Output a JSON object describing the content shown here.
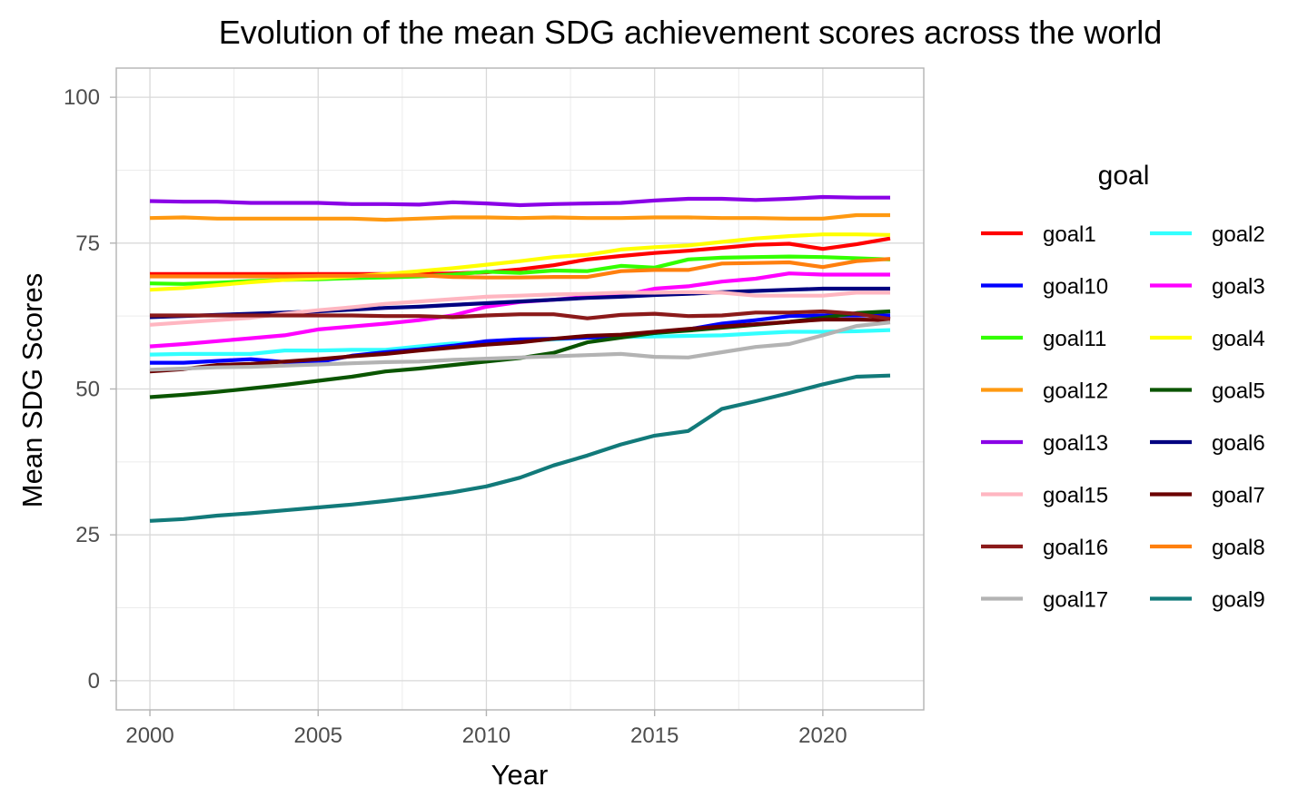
{
  "chart_data": {
    "type": "line",
    "title": "Evolution of the mean SDG achievement scores across the world",
    "xlabel": "Year",
    "ylabel": "Mean SDG Scores",
    "xlim": [
      1999,
      2023
    ],
    "ylim": [
      -5,
      105
    ],
    "x_ticks": [
      2000,
      2005,
      2010,
      2015,
      2020
    ],
    "y_ticks": [
      0,
      25,
      50,
      75,
      100
    ],
    "grid": true,
    "legend": {
      "title": "goal",
      "position": "right",
      "columns": 2
    },
    "x": [
      2000,
      2001,
      2002,
      2003,
      2004,
      2005,
      2006,
      2007,
      2008,
      2009,
      2010,
      2011,
      2012,
      2013,
      2014,
      2015,
      2016,
      2017,
      2018,
      2019,
      2020,
      2021,
      2022
    ],
    "series": [
      {
        "name": "goal1",
        "color": "#ff0000",
        "values": [
          69.7,
          69.7,
          69.7,
          69.7,
          69.7,
          69.7,
          69.7,
          69.7,
          69.7,
          69.8,
          70.0,
          70.5,
          71.2,
          72.2,
          72.8,
          73.3,
          73.7,
          74.2,
          74.7,
          74.9,
          74.0,
          74.8,
          75.8
        ]
      },
      {
        "name": "goal2",
        "color": "#33ffff",
        "values": [
          55.9,
          56.0,
          56.0,
          56.0,
          56.6,
          56.6,
          56.7,
          56.7,
          57.3,
          57.8,
          57.8,
          58.2,
          58.5,
          58.8,
          58.9,
          59.0,
          59.1,
          59.2,
          59.5,
          59.8,
          59.8,
          59.9,
          60.1
        ]
      },
      {
        "name": "goal10",
        "color": "#0000ff",
        "values": [
          54.5,
          54.5,
          54.8,
          55.1,
          54.6,
          54.6,
          55.7,
          56.3,
          56.8,
          57.4,
          58.2,
          58.5,
          58.6,
          58.8,
          59.0,
          59.6,
          60.2,
          61.2,
          61.8,
          62.5,
          62.6,
          62.6,
          62.6
        ]
      },
      {
        "name": "goal3",
        "color": "#ff00ff",
        "values": [
          57.3,
          57.7,
          58.2,
          58.7,
          59.2,
          60.2,
          60.7,
          61.2,
          61.8,
          62.6,
          64.1,
          64.9,
          65.3,
          65.8,
          66.0,
          67.2,
          67.6,
          68.4,
          68.9,
          69.8,
          69.6,
          69.6,
          69.6
        ]
      },
      {
        "name": "goal11",
        "color": "#33ff00",
        "values": [
          68.1,
          68.0,
          68.2,
          68.5,
          68.7,
          68.8,
          69.0,
          69.1,
          69.3,
          69.6,
          70.1,
          69.9,
          70.3,
          70.2,
          71.1,
          70.8,
          72.2,
          72.5,
          72.6,
          72.7,
          72.6,
          72.4,
          72.2
        ]
      },
      {
        "name": "goal4",
        "color": "#ffff00",
        "values": [
          67.0,
          67.3,
          67.8,
          68.3,
          68.7,
          69.0,
          69.3,
          69.7,
          70.2,
          70.7,
          71.3,
          71.9,
          72.6,
          73.0,
          73.9,
          74.3,
          74.6,
          75.2,
          75.8,
          76.2,
          76.5,
          76.5,
          76.4
        ]
      },
      {
        "name": "goal12",
        "color": "#ff9911",
        "values": [
          79.3,
          79.4,
          79.2,
          79.2,
          79.2,
          79.2,
          79.2,
          79.0,
          79.2,
          79.4,
          79.4,
          79.3,
          79.4,
          79.3,
          79.3,
          79.4,
          79.4,
          79.3,
          79.3,
          79.2,
          79.2,
          79.8,
          79.8
        ]
      },
      {
        "name": "goal5",
        "color": "#0a5500",
        "values": [
          48.6,
          49.0,
          49.5,
          50.1,
          50.7,
          51.4,
          52.1,
          53.0,
          53.5,
          54.1,
          54.7,
          55.3,
          56.2,
          58.0,
          58.8,
          59.6,
          60.0,
          60.5,
          61.0,
          61.5,
          62.2,
          63.0,
          63.3
        ]
      },
      {
        "name": "goal13",
        "color": "#8a00e6",
        "values": [
          82.2,
          82.1,
          82.1,
          81.9,
          81.9,
          81.9,
          81.7,
          81.7,
          81.6,
          82.0,
          81.8,
          81.5,
          81.7,
          81.8,
          81.9,
          82.3,
          82.6,
          82.6,
          82.4,
          82.6,
          82.9,
          82.8,
          82.8
        ]
      },
      {
        "name": "goal6",
        "color": "#000080",
        "values": [
          62.3,
          62.5,
          62.7,
          62.9,
          63.1,
          63.3,
          63.6,
          63.9,
          64.1,
          64.4,
          64.7,
          65.0,
          65.3,
          65.6,
          65.8,
          66.1,
          66.3,
          66.6,
          66.8,
          67.0,
          67.2,
          67.2,
          67.2
        ]
      },
      {
        "name": "goal15",
        "color": "#ffb6c1",
        "values": [
          61.0,
          61.4,
          61.8,
          62.2,
          62.9,
          63.5,
          64.0,
          64.6,
          65.0,
          65.4,
          65.8,
          66.0,
          66.2,
          66.3,
          66.5,
          66.5,
          66.6,
          66.5,
          66.0,
          66.0,
          66.0,
          66.5,
          66.5
        ]
      },
      {
        "name": "goal7",
        "color": "#6b0000",
        "values": [
          53.0,
          53.4,
          54.1,
          54.3,
          54.7,
          55.1,
          55.6,
          56.0,
          56.6,
          57.1,
          57.6,
          58.0,
          58.6,
          59.1,
          59.3,
          59.8,
          60.3,
          60.7,
          61.1,
          61.5,
          61.9,
          61.9,
          61.8
        ]
      },
      {
        "name": "goal16",
        "color": "#8b1a1a",
        "values": [
          62.6,
          62.6,
          62.6,
          62.6,
          62.6,
          62.6,
          62.6,
          62.5,
          62.5,
          62.3,
          62.6,
          62.8,
          62.8,
          62.1,
          62.7,
          62.9,
          62.5,
          62.6,
          63.1,
          63.1,
          63.3,
          62.9,
          62.0
        ]
      },
      {
        "name": "goal8",
        "color": "#ff7f0e",
        "values": [
          69.3,
          69.3,
          69.3,
          69.3,
          69.3,
          69.4,
          69.4,
          69.4,
          69.5,
          69.2,
          69.1,
          69.1,
          69.2,
          69.2,
          70.2,
          70.4,
          70.4,
          71.5,
          71.6,
          71.7,
          70.9,
          71.9,
          72.3
        ]
      },
      {
        "name": "goal17",
        "color": "#b3b3b3",
        "values": [
          53.3,
          53.5,
          53.7,
          53.8,
          54.0,
          54.2,
          54.4,
          54.6,
          54.7,
          55.0,
          55.2,
          55.4,
          55.6,
          55.8,
          56.0,
          55.5,
          55.4,
          56.3,
          57.2,
          57.7,
          59.2,
          60.8,
          61.4
        ]
      },
      {
        "name": "goal9",
        "color": "#127a7a",
        "values": [
          27.4,
          27.7,
          28.3,
          28.7,
          29.2,
          29.7,
          30.2,
          30.8,
          31.5,
          32.3,
          33.3,
          34.8,
          36.9,
          38.6,
          40.5,
          42.0,
          42.8,
          46.6,
          47.9,
          49.3,
          50.8,
          52.1,
          52.3
        ]
      }
    ]
  }
}
